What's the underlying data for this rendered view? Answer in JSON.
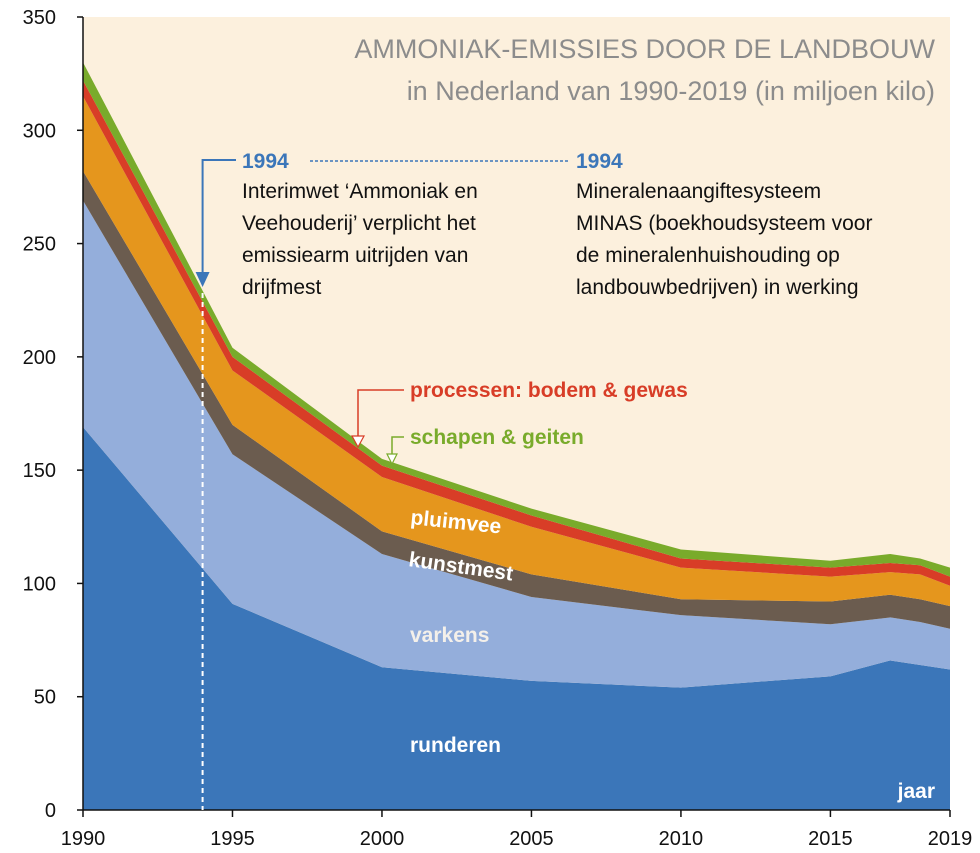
{
  "chart_data": {
    "type": "stacked_area",
    "title": "AMMONIAK-EMISSIES DOOR DE LANDBOUW",
    "subtitle": "in Nederland van 1990-2019 (in miljoen kilo)",
    "x_label": "jaar",
    "x": [
      1990,
      1995,
      2000,
      2005,
      2010,
      2015,
      2017,
      2018,
      2019
    ],
    "series": [
      {
        "name": "runderen",
        "color": "#3b76b9",
        "values": [
          169,
          91,
          63,
          57,
          54,
          59,
          66,
          64,
          62
        ]
      },
      {
        "name": "varkens",
        "color": "#94aedb",
        "values": [
          100,
          66,
          50,
          37,
          32,
          23,
          19,
          19,
          18
        ]
      },
      {
        "name": "kunstmest",
        "color": "#6b5c4f",
        "values": [
          13,
          13,
          10,
          10,
          7,
          10,
          10,
          10,
          10
        ]
      },
      {
        "name": "pluimvee",
        "color": "#e5961d",
        "values": [
          33,
          24,
          24,
          21,
          14,
          11,
          10,
          11,
          9
        ]
      },
      {
        "name": "processen: bodem & gewas",
        "color": "#d83d27",
        "values": [
          7,
          6,
          5,
          5,
          4,
          4,
          4,
          4,
          4
        ]
      },
      {
        "name": "schapen & geiten",
        "color": "#79ab2b",
        "values": [
          8,
          4,
          3,
          3,
          4,
          3,
          4,
          3,
          4
        ]
      }
    ],
    "xlim": [
      1990,
      2019
    ],
    "xticks": [
      1990,
      1995,
      2000,
      2005,
      2010,
      2015,
      2019
    ],
    "ylim": [
      0,
      350
    ],
    "yticks": [
      0,
      50,
      100,
      150,
      200,
      250,
      300,
      350
    ],
    "annotations": [
      {
        "x": 1994,
        "year_label": "1994",
        "lines": [
          "Interimwet ‘Ammoniak en",
          "Veehouderij’ verplicht het",
          "emissiearm uitrijden van",
          "drijfmest"
        ]
      },
      {
        "year_label": "1994",
        "lines": [
          "Mineralenaangiftesysteem",
          "MINAS (boekhoudsysteem voor",
          "de mineralenhuishouding op",
          "landbouwbedrijven) in werking"
        ]
      }
    ]
  }
}
